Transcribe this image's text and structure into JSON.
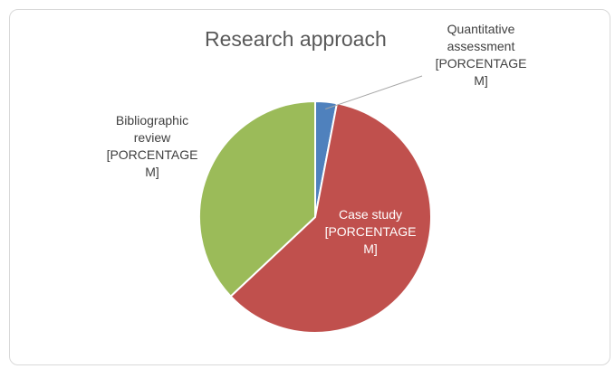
{
  "chart_data": {
    "type": "pie",
    "title": "Research approach",
    "series": [
      {
        "values": [
          {
            "category": "Quantitative assessment",
            "value": 3
          },
          {
            "category": "Case study",
            "value": 60
          },
          {
            "category": "Bibliographic review",
            "value": 37
          }
        ]
      }
    ],
    "slices": [
      {
        "label": "Quantitative assessment",
        "value": 3,
        "color": "#4f81bd",
        "data_label": "Quantitative\nassessment\n[PORCENTAGE\nM]"
      },
      {
        "label": "Case study",
        "value": 60,
        "color": "#c0504d",
        "data_label": "Case study\n[PORCENTAGE\nM]"
      },
      {
        "label": "Bibliographic review",
        "value": 37,
        "color": "#9bbb59",
        "data_label": "Bibliographic\nreview\n[PORCENTAGE\nM]"
      }
    ],
    "legend": "none",
    "start_angle_deg": 0,
    "direction": "clockwise"
  }
}
